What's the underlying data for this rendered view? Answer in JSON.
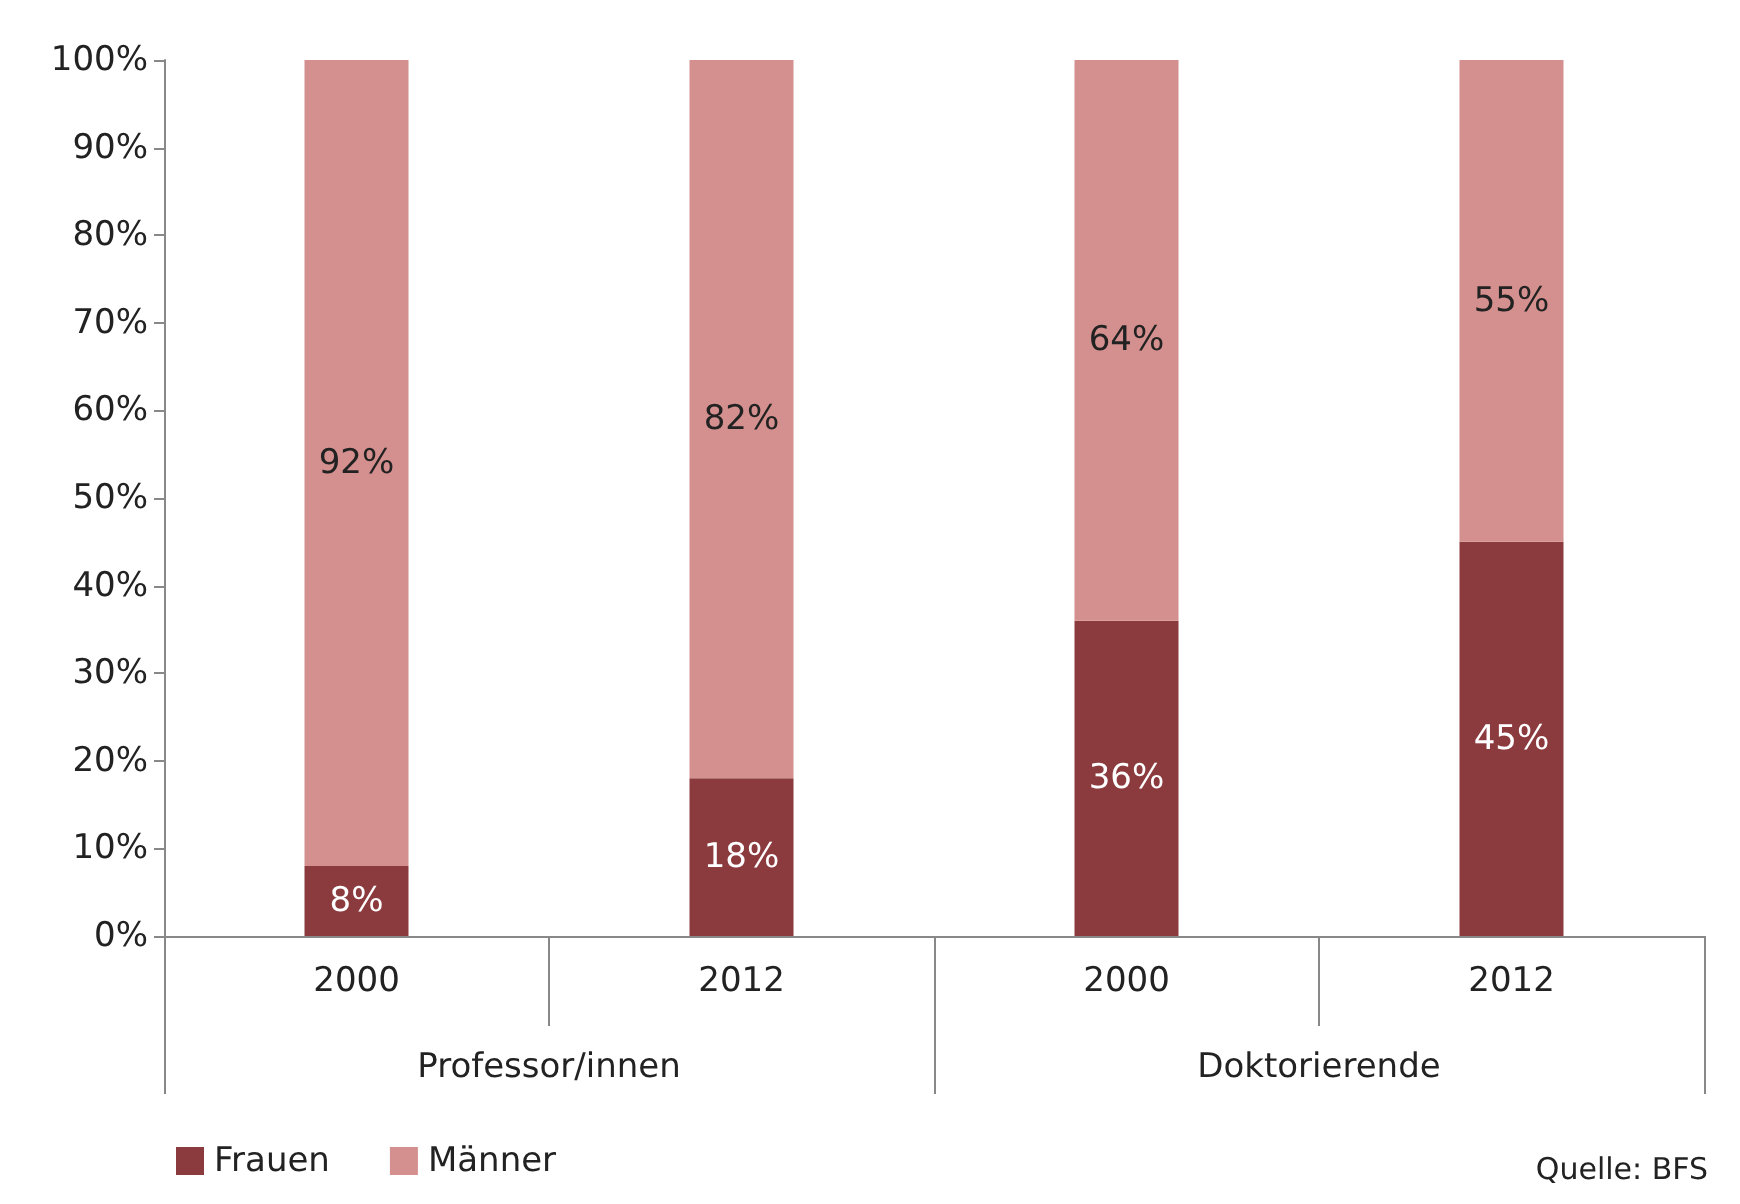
{
  "chart_data": {
    "type": "bar",
    "stacked": true,
    "categories": [
      "2000",
      "2012",
      "2000",
      "2012"
    ],
    "series": [
      {
        "name": "Frauen",
        "color": "#8b3a3e",
        "values": [
          8,
          18,
          36,
          45
        ]
      },
      {
        "name": "Männer",
        "color": "#d4908e",
        "values": [
          92,
          82,
          64,
          55
        ]
      }
    ],
    "ylim": [
      0,
      100
    ],
    "yticks": [
      {
        "value": 0,
        "label": "0%"
      },
      {
        "value": 10,
        "label": "10%"
      },
      {
        "value": 20,
        "label": "20%"
      },
      {
        "value": 30,
        "label": "30%"
      },
      {
        "value": 40,
        "label": "40%"
      },
      {
        "value": 50,
        "label": "50%"
      },
      {
        "value": 60,
        "label": "60%"
      },
      {
        "value": 70,
        "label": "70%"
      },
      {
        "value": 80,
        "label": "80%"
      },
      {
        "value": 90,
        "label": "90%"
      },
      {
        "value": 100,
        "label": "100%"
      }
    ],
    "value_labels": [
      [
        "8%",
        "18%",
        "36%",
        "45%"
      ],
      [
        "92%",
        "82%",
        "64%",
        "55%"
      ]
    ],
    "annotations": [
      "Professor/innen",
      "Doktorierende",
      "Quelle: BFS"
    ],
    "grid": false,
    "legend": "bottom left"
  }
}
